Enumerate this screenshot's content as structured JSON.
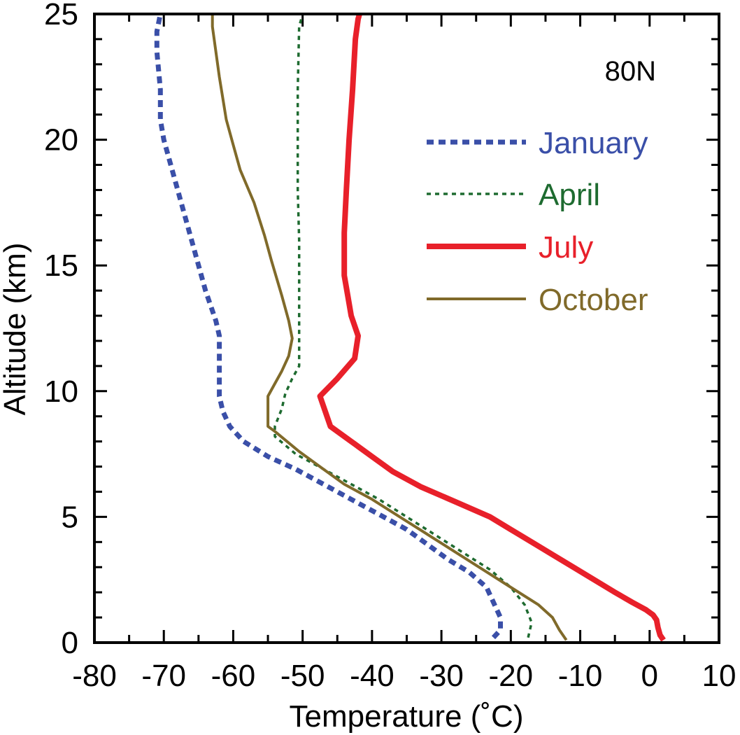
{
  "chart_data": {
    "type": "line",
    "title": "",
    "annotation": "80N",
    "xlabel": "Temperature (˚C)",
    "ylabel": "Altitude (km)",
    "xlim": [
      -80,
      10
    ],
    "ylim": [
      0,
      25
    ],
    "x_ticks": [
      "-80",
      "-70",
      "-60",
      "-50",
      "-40",
      "-30",
      "-20",
      "-10",
      "0",
      "10"
    ],
    "y_ticks": [
      "0",
      "5",
      "10",
      "15",
      "20",
      "25"
    ],
    "grid": false,
    "legend_position": "top-right",
    "series": [
      {
        "name": "January",
        "color": "#3a4fa8",
        "style": "thick-dotted",
        "points": [
          [
            -22.5,
            0.2
          ],
          [
            -21.5,
            0.5
          ],
          [
            -21.5,
            1.0
          ],
          [
            -22.5,
            1.6
          ],
          [
            -23.5,
            2.2
          ],
          [
            -26,
            2.8
          ],
          [
            -29,
            3.3
          ],
          [
            -32,
            3.9
          ],
          [
            -35,
            4.5
          ],
          [
            -39,
            5.1
          ],
          [
            -43,
            5.7
          ],
          [
            -47,
            6.3
          ],
          [
            -51,
            6.9
          ],
          [
            -55,
            7.4
          ],
          [
            -58.5,
            8.0
          ],
          [
            -60.5,
            8.6
          ],
          [
            -61.5,
            9.2
          ],
          [
            -62,
            9.8
          ],
          [
            -62,
            10.5
          ],
          [
            -62,
            11.5
          ],
          [
            -62,
            12.2
          ],
          [
            -62.5,
            12.8
          ],
          [
            -64,
            14.0
          ],
          [
            -65.5,
            15.5
          ],
          [
            -67,
            17.0
          ],
          [
            -68.5,
            18.5
          ],
          [
            -70,
            20.0
          ],
          [
            -70.5,
            20.8
          ],
          [
            -70.5,
            22.0
          ],
          [
            -71,
            23.5
          ],
          [
            -71,
            24.3
          ],
          [
            -70.5,
            25.0
          ]
        ]
      },
      {
        "name": "April",
        "color": "#1e6b30",
        "style": "thin-dotted",
        "points": [
          [
            -17.5,
            0.2
          ],
          [
            -17,
            0.8
          ],
          [
            -18,
            1.5
          ],
          [
            -20,
            2.2
          ],
          [
            -23,
            2.9
          ],
          [
            -27,
            3.6
          ],
          [
            -31,
            4.3
          ],
          [
            -35,
            5.0
          ],
          [
            -39,
            5.7
          ],
          [
            -43,
            6.3
          ],
          [
            -47,
            6.9
          ],
          [
            -51,
            7.5
          ],
          [
            -54,
            8.2
          ],
          [
            -54,
            8.6
          ],
          [
            -53,
            9.3
          ],
          [
            -52.5,
            9.9
          ],
          [
            -51.5,
            10.5
          ],
          [
            -50.5,
            11.0
          ],
          [
            -50.5,
            12.5
          ],
          [
            -50.5,
            14.0
          ],
          [
            -50.5,
            16.0
          ],
          [
            -50.7,
            18.0
          ],
          [
            -50.7,
            20.0
          ],
          [
            -50.7,
            22.0
          ],
          [
            -50.5,
            24.5
          ],
          [
            -50,
            25.0
          ]
        ]
      },
      {
        "name": "July",
        "color": "#e8202a",
        "style": "thick-solid",
        "points": [
          [
            2,
            0.1
          ],
          [
            1.5,
            0.3
          ],
          [
            1.2,
            0.6
          ],
          [
            1.0,
            0.9
          ],
          [
            0.5,
            1.1
          ],
          [
            -0.5,
            1.3
          ],
          [
            -2.5,
            1.6
          ],
          [
            -5,
            2.0
          ],
          [
            -8,
            2.5
          ],
          [
            -11,
            3.0
          ],
          [
            -14,
            3.5
          ],
          [
            -17,
            4.0
          ],
          [
            -20,
            4.5
          ],
          [
            -23,
            5.0
          ],
          [
            -28,
            5.6
          ],
          [
            -33,
            6.2
          ],
          [
            -37,
            6.8
          ],
          [
            -40,
            7.4
          ],
          [
            -43,
            8.0
          ],
          [
            -46,
            8.6
          ],
          [
            -47.5,
            9.8
          ],
          [
            -45,
            10.5
          ],
          [
            -42.5,
            11.3
          ],
          [
            -42,
            12.2
          ],
          [
            -43,
            13.0
          ],
          [
            -43.5,
            13.8
          ],
          [
            -44,
            14.6
          ],
          [
            -44,
            15.5
          ],
          [
            -44,
            16.3
          ],
          [
            -43.7,
            18.0
          ],
          [
            -43.3,
            20.0
          ],
          [
            -42.8,
            22.0
          ],
          [
            -42.4,
            24.0
          ],
          [
            -42,
            24.8
          ],
          [
            -41.8,
            25.0
          ]
        ]
      },
      {
        "name": "October",
        "color": "#806a2a",
        "style": "solid",
        "points": [
          [
            -12,
            0.1
          ],
          [
            -13,
            0.5
          ],
          [
            -14,
            1.0
          ],
          [
            -16,
            1.5
          ],
          [
            -20,
            2.2
          ],
          [
            -24,
            2.9
          ],
          [
            -28,
            3.6
          ],
          [
            -32,
            4.3
          ],
          [
            -36,
            5.0
          ],
          [
            -40,
            5.7
          ],
          [
            -44,
            6.3
          ],
          [
            -47,
            6.9
          ],
          [
            -50.5,
            7.6
          ],
          [
            -54,
            8.4
          ],
          [
            -55,
            8.6
          ],
          [
            -55,
            9.2
          ],
          [
            -55,
            9.8
          ],
          [
            -54,
            10.3
          ],
          [
            -53,
            10.8
          ],
          [
            -52,
            11.4
          ],
          [
            -51.5,
            12.1
          ],
          [
            -52,
            12.8
          ],
          [
            -53,
            13.8
          ],
          [
            -54.5,
            15.2
          ],
          [
            -55.5,
            16.2
          ],
          [
            -57,
            17.5
          ],
          [
            -59,
            18.8
          ],
          [
            -60,
            19.8
          ],
          [
            -61,
            20.8
          ],
          [
            -62,
            22.5
          ],
          [
            -63,
            24.5
          ],
          [
            -63,
            25.0
          ]
        ]
      }
    ]
  }
}
